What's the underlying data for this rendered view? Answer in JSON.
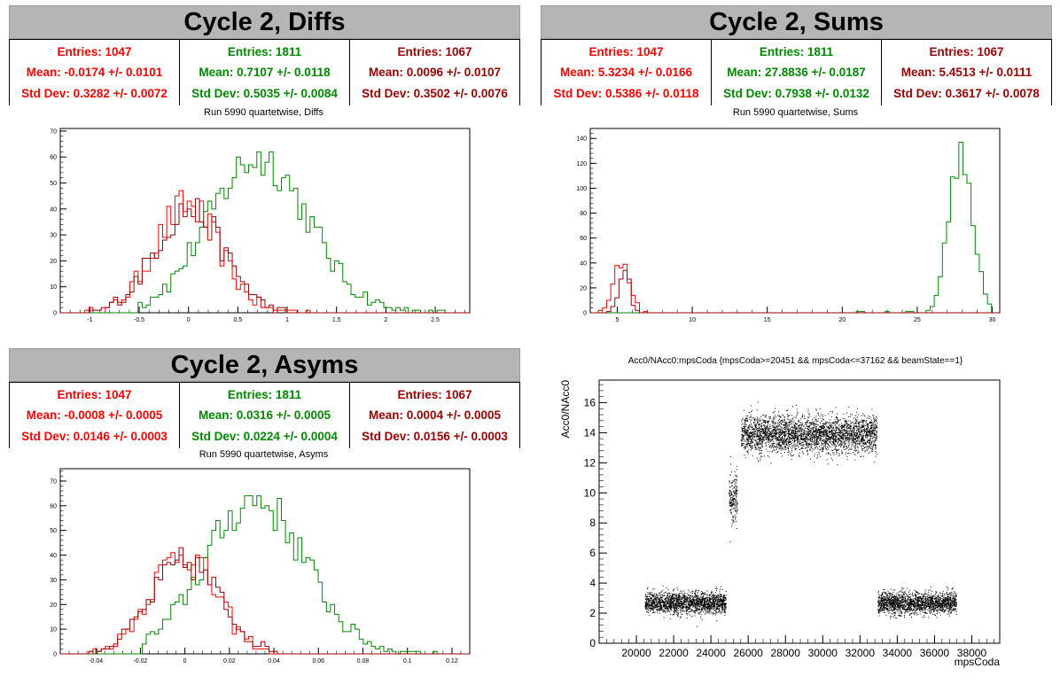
{
  "colors": {
    "red": "#ff0000",
    "green": "#008800",
    "darkred": "#990000",
    "black": "#000000",
    "title_bg": "#b5b5b5"
  },
  "panels": {
    "diffs": {
      "title": "Cycle 2, Diffs",
      "subtitle": "Run 5990 quartetwise, Diffs",
      "stats": [
        {
          "entries": "Entries: 1047",
          "mean": "Mean: -0.0174 +/- 0.0101",
          "std": "Std Dev: 0.3282 +/- 0.0072",
          "color": "#ff0000"
        },
        {
          "entries": "Entries: 1811",
          "mean": "Mean: 0.7107 +/- 0.0118",
          "std": "Std Dev: 0.5035 +/- 0.0084",
          "color": "#008800"
        },
        {
          "entries": "Entries: 1067",
          "mean": "Mean: 0.0096 +/- 0.0107",
          "std": "Std Dev: 0.3502 +/- 0.0076",
          "color": "#990000"
        }
      ]
    },
    "sums": {
      "title": "Cycle 2, Sums",
      "subtitle": "Run 5990 quartetwise, Sums",
      "stats": [
        {
          "entries": "Entries: 1047",
          "mean": "Mean: 5.3234 +/- 0.0166",
          "std": "Std Dev: 0.5386 +/- 0.0118",
          "color": "#ff0000"
        },
        {
          "entries": "Entries: 1811",
          "mean": "Mean: 27.8836 +/- 0.0187",
          "std": "Std Dev: 0.7938 +/- 0.0132",
          "color": "#008800"
        },
        {
          "entries": "Entries: 1067",
          "mean": "Mean: 5.4513 +/- 0.0111",
          "std": "Std Dev: 0.3617 +/- 0.0078",
          "color": "#990000"
        }
      ]
    },
    "asyms": {
      "title": "Cycle 2, Asyms",
      "subtitle": "Run 5990 quartetwise, Asyms",
      "stats": [
        {
          "entries": "Entries: 1047",
          "mean": "Mean: -0.0008 +/- 0.0005",
          "std": "Std Dev: 0.0146 +/- 0.0003",
          "color": "#ff0000"
        },
        {
          "entries": "Entries: 1811",
          "mean": "Mean: 0.0316 +/- 0.0005",
          "std": "Std Dev: 0.0224 +/- 0.0004",
          "color": "#008800"
        },
        {
          "entries": "Entries: 1067",
          "mean": "Mean: 0.0004 +/- 0.0005",
          "std": "Std Dev: 0.0156 +/- 0.0003",
          "color": "#990000"
        }
      ]
    },
    "scatter": {
      "title": "Acc0/NAcc0:mpsCoda {mpsCoda>=20451 && mpsCoda<=37162 && beamState==1}",
      "xlabel": "mpsCoda",
      "ylabel": "Acc0/NAcc0"
    }
  },
  "chart_data": [
    {
      "type": "histogram",
      "name": "diffs",
      "xlim": [
        -1.3,
        2.85
      ],
      "ylim": [
        0,
        71
      ],
      "xticks": [
        -1,
        -0.5,
        0,
        0.5,
        1,
        1.5,
        2,
        2.5
      ],
      "xticklabels": [
        "-1",
        "-0.5",
        "0",
        "0.5",
        "1",
        "1.5",
        "2",
        "2.5"
      ],
      "yticks": [
        0,
        10,
        20,
        30,
        40,
        50,
        60,
        70
      ],
      "series": [
        {
          "color": "#ff0000",
          "mean": -0.0174,
          "std": 0.3282,
          "entries": 1047,
          "peak": 47,
          "range": [
            -1.1,
            1.3
          ]
        },
        {
          "color": "#008800",
          "mean": 0.7107,
          "std": 0.5035,
          "entries": 1811,
          "peak": 68,
          "range": [
            -0.5,
            2.6
          ]
        },
        {
          "color": "#990000",
          "mean": 0.0096,
          "std": 0.3502,
          "entries": 1067,
          "peak": 45,
          "range": [
            -1.0,
            1.2
          ]
        }
      ]
    },
    {
      "type": "histogram",
      "name": "sums",
      "xlim": [
        3.2,
        30.5
      ],
      "ylim": [
        0,
        148
      ],
      "xticks": [
        5,
        10,
        15,
        20,
        25,
        30
      ],
      "xticklabels": [
        "5",
        "10",
        "15",
        "20",
        "25",
        "30"
      ],
      "yticks": [
        0,
        20,
        40,
        60,
        80,
        100,
        120,
        140
      ],
      "series": [
        {
          "color": "#ff0000",
          "mean": 5.3234,
          "std": 0.5386,
          "entries": 1047,
          "peak": 46,
          "range": [
            3.5,
            7.0
          ]
        },
        {
          "color": "#008800",
          "mean": 27.8836,
          "std": 0.7938,
          "entries": 1811,
          "peak": 143,
          "range": [
            20.5,
            30.0
          ]
        },
        {
          "color": "#990000",
          "mean": 5.4513,
          "std": 0.3617,
          "entries": 1067,
          "peak": 44,
          "range": [
            4.0,
            6.8
          ]
        }
      ]
    },
    {
      "type": "histogram",
      "name": "asyms",
      "xlim": [
        -0.056,
        0.128
      ],
      "ylim": [
        0,
        75
      ],
      "xticks": [
        -0.04,
        -0.02,
        0,
        0.02,
        0.04,
        0.06,
        0.08,
        0.1,
        0.12
      ],
      "xticklabels": [
        "-0.04",
        "-0.02",
        "0",
        "0.02",
        "0.04",
        "0.06",
        "0.08",
        "0.1",
        "0.12"
      ],
      "yticks": [
        0,
        10,
        20,
        30,
        40,
        50,
        60,
        70
      ],
      "series": [
        {
          "color": "#ff0000",
          "mean": -0.0008,
          "std": 0.0146,
          "entries": 1047,
          "peak": 47,
          "range": [
            -0.045,
            0.045
          ]
        },
        {
          "color": "#008800",
          "mean": 0.0316,
          "std": 0.0224,
          "entries": 1811,
          "peak": 71,
          "range": [
            -0.02,
            0.115
          ]
        },
        {
          "color": "#990000",
          "mean": 0.0004,
          "std": 0.0156,
          "entries": 1067,
          "peak": 42,
          "range": [
            -0.045,
            0.045
          ]
        }
      ]
    },
    {
      "type": "scatter",
      "name": "acc0-vs-mpscoda",
      "xlim": [
        18000,
        39500
      ],
      "ylim": [
        0,
        17.5
      ],
      "xticks": [
        20000,
        22000,
        24000,
        26000,
        28000,
        30000,
        32000,
        34000,
        36000,
        38000
      ],
      "yticks": [
        0,
        2,
        4,
        6,
        8,
        10,
        12,
        14,
        16
      ],
      "xlabel": "mpsCoda",
      "ylabel": "Acc0/NAcc0",
      "clusters": [
        {
          "x": [
            20451,
            24800
          ],
          "y_center": 2.7,
          "y_spread": 0.35
        },
        {
          "x": [
            24950,
            25400
          ],
          "y_center": 9.6,
          "y_spread": 0.8
        },
        {
          "x": [
            25600,
            32900
          ],
          "y_center": 13.9,
          "y_spread": 0.6
        },
        {
          "x": [
            32950,
            37162
          ],
          "y_center": 2.7,
          "y_spread": 0.35
        }
      ]
    }
  ]
}
